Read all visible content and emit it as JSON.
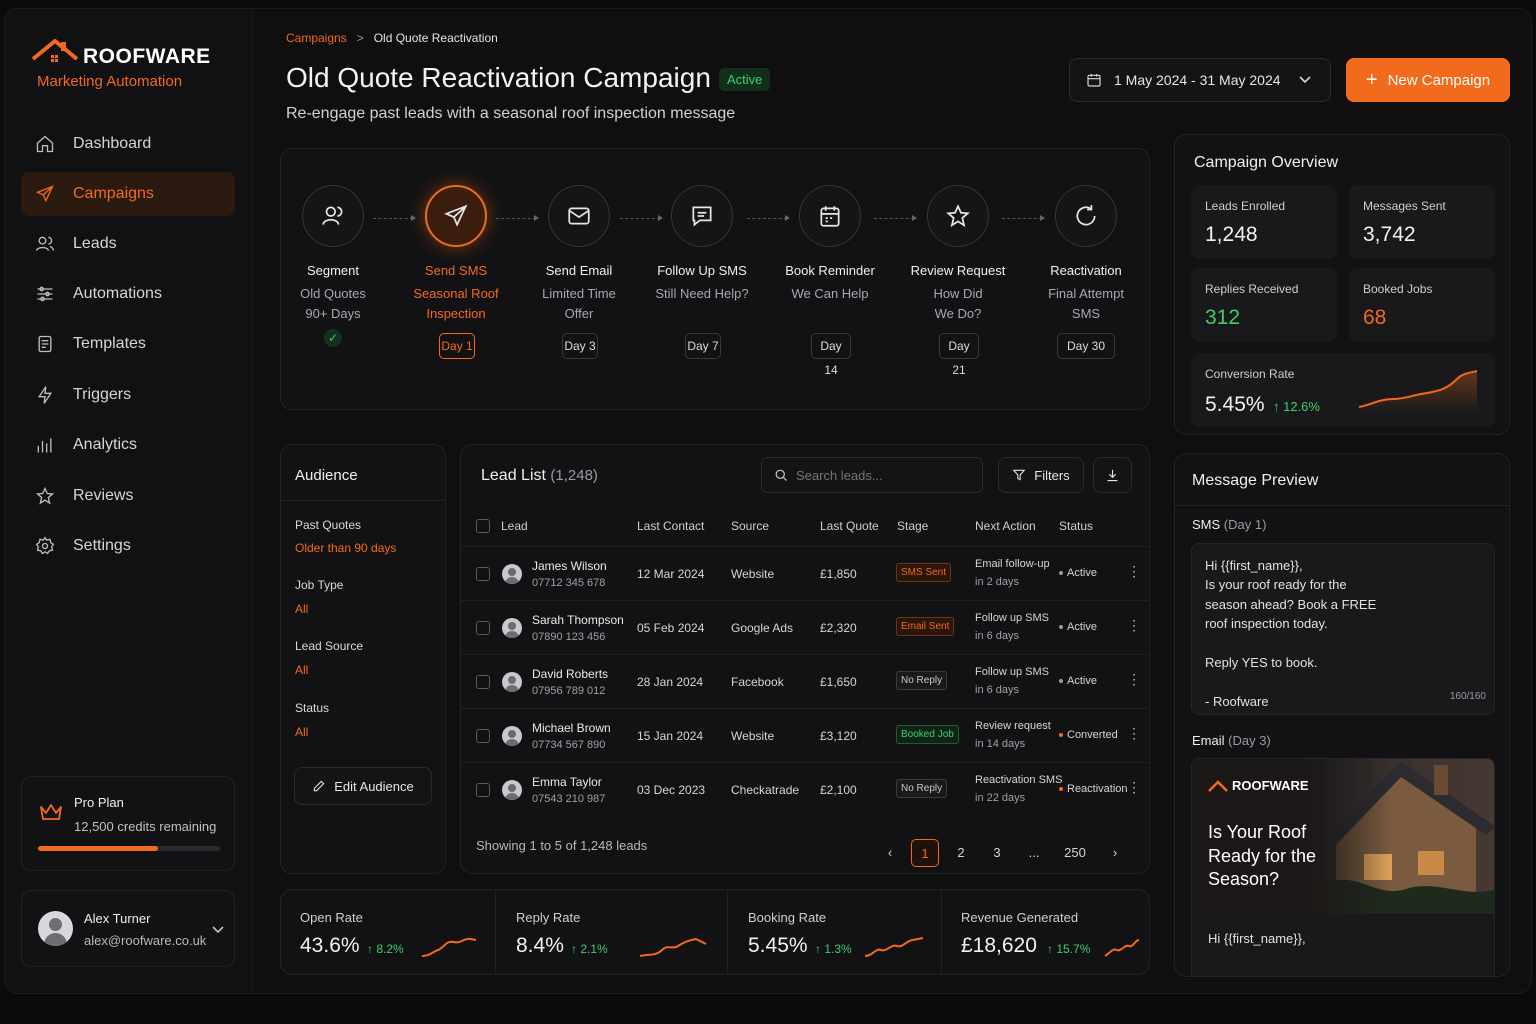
{
  "brand": {
    "name": "ROOFWARE",
    "tagline": "Marketing Automation",
    "accent": "#f26a1b"
  },
  "nav": [
    {
      "label": "Dashboard",
      "icon": "home-icon"
    },
    {
      "label": "Campaigns",
      "icon": "send-icon",
      "active": true
    },
    {
      "label": "Leads",
      "icon": "users-icon"
    },
    {
      "label": "Automations",
      "icon": "sliders-icon"
    },
    {
      "label": "Templates",
      "icon": "document-icon"
    },
    {
      "label": "Triggers",
      "icon": "bolt-icon"
    },
    {
      "label": "Analytics",
      "icon": "bar-chart-icon"
    },
    {
      "label": "Reviews",
      "icon": "star-icon"
    },
    {
      "label": "Settings",
      "icon": "gear-icon"
    }
  ],
  "plan": {
    "name": "Pro Plan",
    "credits": "12,500 credits remaining",
    "usage": 0.66
  },
  "user": {
    "name": "Alex Turner",
    "email": "alex@roofware.co.uk"
  },
  "breadcrumb": {
    "parent": "Campaigns",
    "separator": ">",
    "current": "Old Quote Reactivation"
  },
  "header": {
    "title": "Old Quote Reactivation Campaign",
    "status": "Active",
    "subtitle": "Re-engage past leads with a seasonal roof inspection message",
    "date_range": "1 May 2024 - 31 May 2024",
    "new_campaign": "New Campaign"
  },
  "steps": [
    {
      "title": "Segment",
      "line1": "Old Quotes",
      "line2": "90+ Days",
      "day": "",
      "icon": "users-icon"
    },
    {
      "title": "Send SMS",
      "line1": "Seasonal Roof",
      "line2": "Inspection",
      "day": "Day 1",
      "icon": "paper-plane-icon"
    },
    {
      "title": "Send Email",
      "line1": "Limited Time",
      "line2": "Offer",
      "day": "Day 3",
      "icon": "envelope-icon"
    },
    {
      "title": "Follow Up SMS",
      "line1": "Still Need Help?",
      "line2": "",
      "day": "Day 7",
      "icon": "chat-icon"
    },
    {
      "title": "Book Reminder",
      "line1": "We Can Help",
      "line2": "",
      "day": "Day 14",
      "icon": "calendar-icon"
    },
    {
      "title": "Review Request",
      "line1": "How Did",
      "line2": "We Do?",
      "day": "Day 21",
      "icon": "star-icon"
    },
    {
      "title": "Reactivation",
      "line1": "Final Attempt",
      "line2": "SMS",
      "day": "Day 30",
      "icon": "refresh-icon"
    }
  ],
  "audience": {
    "title": "Audience",
    "fields": [
      {
        "label": "Past Quotes",
        "value": "Older than 90 days"
      },
      {
        "label": "Job Type",
        "value": "All"
      },
      {
        "label": "Lead Source",
        "value": "All"
      },
      {
        "label": "Status",
        "value": "All"
      }
    ],
    "edit": "Edit Audience"
  },
  "leads": {
    "title": "Lead List",
    "count": "(1,248)",
    "search_placeholder": "Search leads...",
    "filters": "Filters",
    "columns": [
      "Lead",
      "Last Contact",
      "Source",
      "Last Quote",
      "Stage",
      "Next Action",
      "Status"
    ],
    "rows": [
      {
        "name": "James Wilson",
        "phone": "07712 345 678",
        "last_contact": "12 Mar 2024",
        "source": "Website",
        "quote": "£1,850",
        "stage": "SMS Sent",
        "stage_type": "sms",
        "next": "Email follow-up",
        "next_when": "in 2 days",
        "status": "Active",
        "status_color": "#9a9aa0"
      },
      {
        "name": "Sarah Thompson",
        "phone": "07890 123 456",
        "last_contact": "05 Feb 2024",
        "source": "Google Ads",
        "quote": "£2,320",
        "stage": "Email Sent",
        "stage_type": "email",
        "next": "Follow up SMS",
        "next_when": "in 6 days",
        "status": "Active",
        "status_color": "#9a9aa0"
      },
      {
        "name": "David Roberts",
        "phone": "07956 789 012",
        "last_contact": "28 Jan 2024",
        "source": "Facebook",
        "quote": "£1,650",
        "stage": "No Reply",
        "stage_type": "no",
        "next": "Follow up SMS",
        "next_when": "in 6 days",
        "status": "Active",
        "status_color": "#9a9aa0"
      },
      {
        "name": "Michael Brown",
        "phone": "07734 567 890",
        "last_contact": "15 Jan 2024",
        "source": "Website",
        "quote": "£3,120",
        "stage": "Booked Job",
        "stage_type": "book",
        "next": "Review request",
        "next_when": "in 14 days",
        "status": "Converted",
        "status_color": "#f26a1b"
      },
      {
        "name": "Emma Taylor",
        "phone": "07543 210 987",
        "last_contact": "03 Dec 2023",
        "source": "Checkatrade",
        "quote": "£2,100",
        "stage": "No Reply",
        "stage_type": "no",
        "next": "Reactivation SMS",
        "next_when": "in 22 days",
        "status": "Reactivation",
        "status_color": "#f26a1b"
      }
    ],
    "showing": "Showing 1 to 5 of 1,248 leads",
    "pages": [
      "1",
      "2",
      "3",
      "...",
      "250"
    ]
  },
  "metrics": [
    {
      "label": "Open Rate",
      "value": "43.6%",
      "delta": "↑ 8.2%"
    },
    {
      "label": "Reply Rate",
      "value": "8.4%",
      "delta": "↑ 2.1%"
    },
    {
      "label": "Booking Rate",
      "value": "5.45%",
      "delta": "↑ 1.3%"
    },
    {
      "label": "Revenue Generated",
      "value": "£18,620",
      "delta": "↑ 15.7%"
    }
  ],
  "overview": {
    "title": "Campaign Overview",
    "stats": [
      {
        "label": "Leads Enrolled",
        "value": "1,248",
        "color": "#f2f2f4"
      },
      {
        "label": "Messages Sent",
        "value": "3,742",
        "color": "#f2f2f4"
      },
      {
        "label": "Replies Received",
        "value": "312",
        "color": "#3ecf6a"
      },
      {
        "label": "Booked Jobs",
        "value": "68",
        "color": "#f26a1b"
      }
    ],
    "conversion": {
      "label": "Conversion Rate",
      "value": "5.45%",
      "delta": "↑ 12.6%"
    }
  },
  "preview": {
    "title": "Message Preview",
    "sms_label": "SMS",
    "sms_day": "(Day 1)",
    "sms_lines": [
      "Hi {{first_name}},",
      "Is your roof ready for the",
      "season ahead? Book a FREE",
      "roof inspection today.",
      "",
      "Reply YES to book.",
      "",
      "- Roofware"
    ],
    "sms_count": "160/160",
    "email_label": "Email",
    "email_day": "(Day 3)",
    "email_brand": "ROOFWARE",
    "email_headline": [
      "Is Your Roof",
      "Ready for the",
      "Season?"
    ],
    "email_greeting": "Hi {{first_name}},"
  }
}
